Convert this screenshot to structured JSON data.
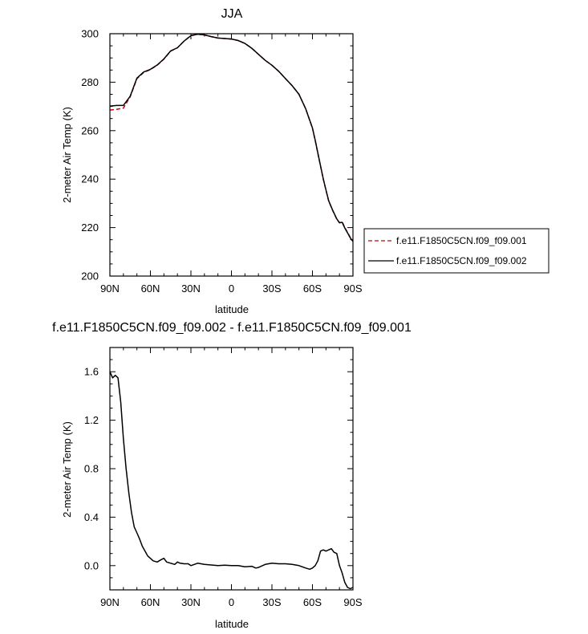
{
  "colors": {
    "series1": "#cc0000",
    "series2": "#000000",
    "frame": "#000000"
  },
  "chart_data": [
    {
      "type": "line",
      "title": "JJA",
      "xlabel": "latitude",
      "ylabel": "2-meter Air Temp (K)",
      "xlim": [
        90,
        -90
      ],
      "ylim": [
        200,
        300
      ],
      "xticks": [
        90,
        60,
        30,
        0,
        -30,
        -60,
        -90
      ],
      "xtick_labels": [
        "90N",
        "60N",
        "30N",
        "0",
        "30S",
        "60S",
        "90S"
      ],
      "yticks": [
        200,
        220,
        240,
        260,
        280,
        300
      ],
      "ytick_labels": [
        "200",
        "220",
        "240",
        "260",
        "280",
        "300"
      ],
      "legend_position": "right",
      "series": [
        {
          "name": "f.e11.F1850C5CN.f09_f09.001",
          "color": "#cc0000",
          "dash": "dashed",
          "x": [
            90,
            85,
            80,
            75,
            70,
            65,
            60,
            55,
            50,
            45,
            40,
            35,
            30,
            25,
            20,
            15,
            10,
            5,
            0,
            -5,
            -10,
            -15,
            -20,
            -25,
            -30,
            -35,
            -40,
            -45,
            -50,
            -55,
            -60,
            -62,
            -65,
            -68,
            -70,
            -72,
            -75,
            -78,
            -80,
            -82,
            -84,
            -86,
            -88,
            -90
          ],
          "y": [
            268.5,
            268.8,
            269.3,
            274,
            281.5,
            284,
            285.2,
            287,
            289.5,
            292.8,
            294.2,
            297,
            299.2,
            299.8,
            299.5,
            298.8,
            298.2,
            298,
            297.8,
            297.2,
            296,
            294,
            291.5,
            289,
            287,
            284.5,
            281.5,
            278.5,
            275,
            269,
            261,
            256,
            248,
            240,
            235.5,
            231,
            227,
            223.5,
            222,
            222.4,
            220,
            218,
            216,
            214.5
          ]
        },
        {
          "name": "f.e11.F1850C5CN.f09_f09.002",
          "color": "#000000",
          "dash": "solid",
          "x": [
            90,
            85,
            80,
            75,
            70,
            65,
            60,
            55,
            50,
            45,
            40,
            35,
            30,
            25,
            20,
            15,
            10,
            5,
            0,
            -5,
            -10,
            -15,
            -20,
            -25,
            -30,
            -35,
            -40,
            -45,
            -50,
            -55,
            -60,
            -62,
            -65,
            -68,
            -70,
            -72,
            -75,
            -78,
            -80,
            -82,
            -84,
            -86,
            -88,
            -90
          ],
          "y": [
            270.1,
            270.4,
            270.4,
            274.2,
            281.7,
            284.2,
            285.3,
            287.1,
            289.6,
            292.9,
            294.2,
            297,
            299.2,
            299.8,
            299.5,
            298.8,
            298.2,
            298,
            297.8,
            297.2,
            296,
            294,
            291.5,
            289,
            287,
            284.5,
            281.5,
            278.5,
            275,
            269,
            261.1,
            256.1,
            248.1,
            240.1,
            235.6,
            231.1,
            227.1,
            223.6,
            222,
            222.2,
            219.8,
            217.8,
            215.8,
            214.3
          ]
        }
      ]
    },
    {
      "type": "line",
      "title": "f.e11.F1850C5CN.f09_f09.002 - f.e11.F1850C5CN.f09_f09.001",
      "xlabel": "latitude",
      "ylabel": "2-meter Air Temp (K)",
      "xlim": [
        90,
        -90
      ],
      "ylim": [
        -0.2,
        1.8
      ],
      "xticks": [
        90,
        60,
        30,
        0,
        -30,
        -60,
        -90
      ],
      "xtick_labels": [
        "90N",
        "60N",
        "30N",
        "0",
        "30S",
        "60S",
        "90S"
      ],
      "yticks": [
        0,
        0.4,
        0.8,
        1.2,
        1.6
      ],
      "ytick_labels": [
        "0.0",
        "0.4",
        "0.8",
        "1.2",
        "1.6"
      ],
      "series": [
        {
          "color": "#000000",
          "dash": "solid",
          "x": [
            90,
            88,
            86,
            84,
            82,
            80,
            78,
            76,
            74,
            72,
            70,
            68,
            66,
            64,
            62,
            60,
            58,
            55,
            52,
            50,
            48,
            45,
            42,
            40,
            38,
            35,
            32,
            30,
            25,
            20,
            15,
            10,
            5,
            0,
            -5,
            -10,
            -15,
            -18,
            -20,
            -25,
            -30,
            -35,
            -40,
            -45,
            -50,
            -55,
            -58,
            -60,
            -62,
            -64,
            -66,
            -68,
            -70,
            -72,
            -74,
            -76,
            -78,
            -80,
            -82,
            -84,
            -86,
            -88,
            -90
          ],
          "y": [
            1.6,
            1.55,
            1.57,
            1.55,
            1.35,
            1.05,
            0.8,
            0.6,
            0.44,
            0.32,
            0.27,
            0.22,
            0.16,
            0.12,
            0.08,
            0.06,
            0.04,
            0.03,
            0.05,
            0.06,
            0.03,
            0.02,
            0.01,
            0.03,
            0.02,
            0.015,
            0.015,
            0.0,
            0.02,
            0.01,
            0.005,
            0.0,
            0.003,
            0.0,
            0.0,
            -0.01,
            -0.005,
            -0.02,
            -0.015,
            0.01,
            0.02,
            0.015,
            0.015,
            0.01,
            0.0,
            -0.02,
            -0.03,
            -0.02,
            0.0,
            0.04,
            0.12,
            0.13,
            0.12,
            0.13,
            0.14,
            0.11,
            0.1,
            0.0,
            -0.06,
            -0.14,
            -0.18,
            -0.19,
            -0.18
          ]
        }
      ]
    }
  ]
}
